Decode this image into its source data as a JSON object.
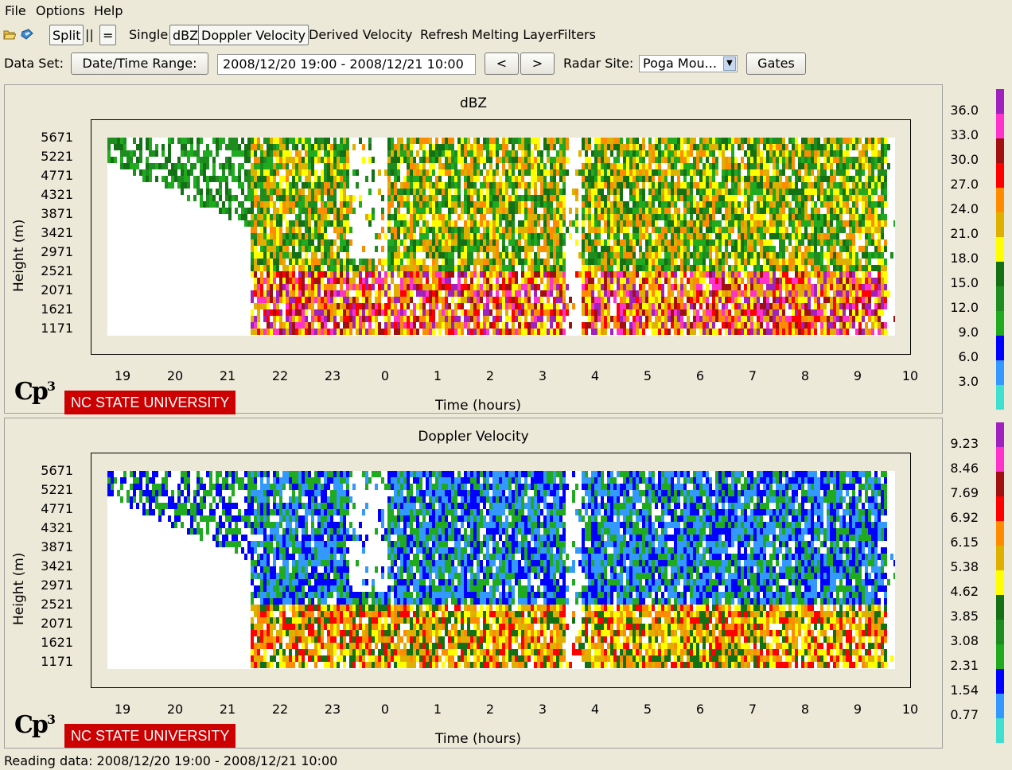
{
  "menu": [
    "File",
    "Options",
    "Help"
  ],
  "toolbar": {
    "open_icon": "folder-open-icon",
    "save_icon": "disk-icon",
    "split_label": "Split",
    "bars_label": "||",
    "equals_label": "=",
    "single_label": "Single",
    "dbz_label": "dBZ",
    "doppler_label": "Doppler Velocity",
    "derived_label": "Derived Velocity",
    "refresh_label": "Refresh",
    "melting_label": "Melting Layer",
    "filters_label": "Filters"
  },
  "databar": {
    "dataset_label": "Data Set:",
    "datetime_button": "Date/Time Range:",
    "datetime_value": "2008/12/20 19:00 - 2008/12/21 10:00",
    "prev_label": "<",
    "next_label": ">",
    "radar_site_label": "Radar Site:",
    "radar_site_value": "Poga Mou...",
    "gates_label": "Gates"
  },
  "logos": {
    "cp3": "Cp3",
    "ncsu": "NC STATE UNIVERSITY"
  },
  "status": "Reading data: 2008/12/20 19:00 - 2008/12/21 10:00",
  "colors": {
    "scale": [
      "#40e0d0",
      "#3399ff",
      "#0000ff",
      "#1faa1f",
      "#1f8c1f",
      "#147014",
      "#ffff00",
      "#e0b000",
      "#ff8c00",
      "#ff0000",
      "#a01010",
      "#ff33cc",
      "#a020c0"
    ]
  },
  "chart_data": [
    {
      "type": "heatmap",
      "title": "dBZ",
      "xlabel": "Time (hours)",
      "ylabel": "Height (m)",
      "x_ticks": [
        "19",
        "20",
        "21",
        "22",
        "23",
        "0",
        "1",
        "2",
        "3",
        "4",
        "5",
        "6",
        "7",
        "8",
        "9",
        "10"
      ],
      "y_ticks": [
        "5671",
        "5221",
        "4771",
        "4321",
        "3871",
        "3421",
        "2971",
        "2521",
        "2071",
        "1621",
        "1171"
      ],
      "colorbar_labels": [
        "36.0",
        "33.0",
        "30.0",
        "27.0",
        "24.0",
        "21.0",
        "18.0",
        "15.0",
        "12.0",
        "9.0",
        "6.0",
        "3.0"
      ],
      "data_start_hour": 21.4,
      "data_end_hour": 9.5
    },
    {
      "type": "heatmap",
      "title": "Doppler Velocity",
      "xlabel": "Time (hours)",
      "ylabel": "Height (m)",
      "x_ticks": [
        "19",
        "20",
        "21",
        "22",
        "23",
        "0",
        "1",
        "2",
        "3",
        "4",
        "5",
        "6",
        "7",
        "8",
        "9",
        "10"
      ],
      "y_ticks": [
        "5671",
        "5221",
        "4771",
        "4321",
        "3871",
        "3421",
        "2971",
        "2521",
        "2071",
        "1621",
        "1171"
      ],
      "colorbar_labels": [
        "9.23",
        "8.46",
        "7.69",
        "6.92",
        "6.15",
        "5.38",
        "4.62",
        "3.85",
        "3.08",
        "2.31",
        "1.54",
        "0.77"
      ],
      "data_start_hour": 21.4,
      "data_end_hour": 9.5
    }
  ]
}
